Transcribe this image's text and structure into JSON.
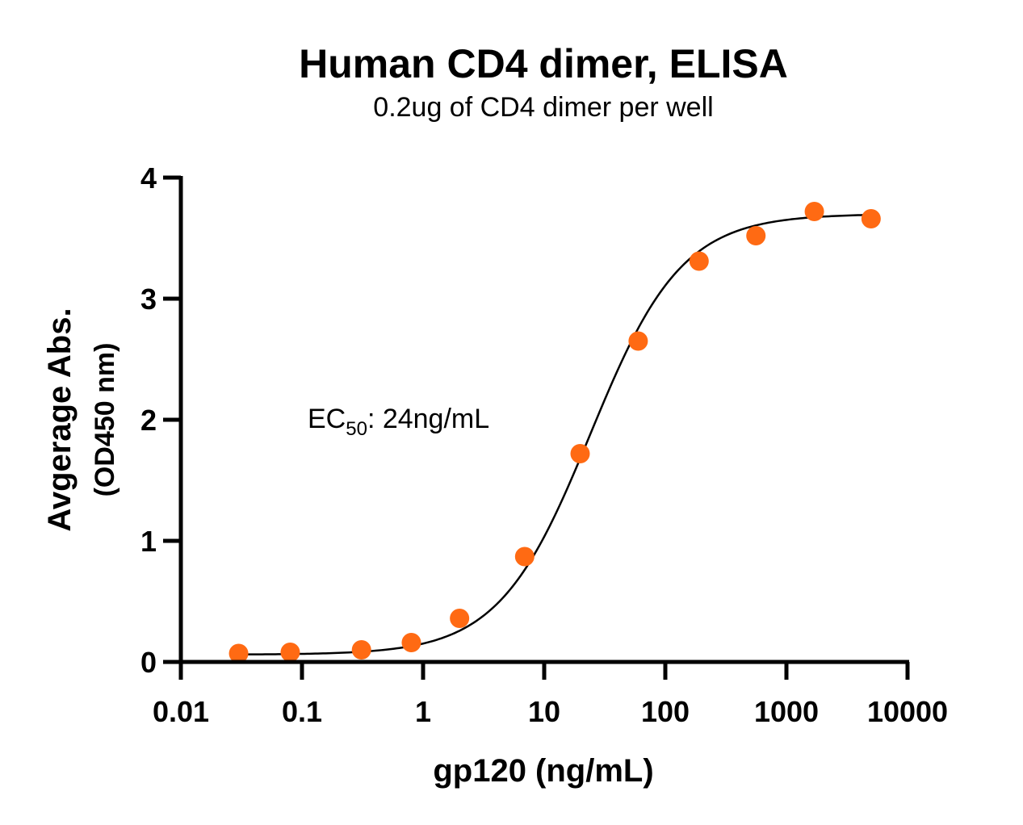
{
  "chart_data": {
    "type": "scatter",
    "title": "Human CD4 dimer, ELISA",
    "subtitle": "0.2ug of CD4 dimer per well",
    "xlabel": "gp120 (ng/mL)",
    "ylabel": "Avgerage Abs.",
    "ylabel_sub": "(OD450 nm)",
    "x_scale": "log",
    "xlim": [
      0.01,
      10000
    ],
    "ylim": [
      0,
      4
    ],
    "x_ticks": [
      {
        "value": 0.01,
        "label": "0.01"
      },
      {
        "value": 0.1,
        "label": "0.1"
      },
      {
        "value": 1,
        "label": "1"
      },
      {
        "value": 10,
        "label": "10"
      },
      {
        "value": 100,
        "label": "100"
      },
      {
        "value": 1000,
        "label": "1000"
      },
      {
        "value": 10000,
        "label": "10000"
      }
    ],
    "y_ticks": [
      {
        "value": 0,
        "label": "0"
      },
      {
        "value": 1,
        "label": "1"
      },
      {
        "value": 2,
        "label": "2"
      },
      {
        "value": 3,
        "label": "3"
      },
      {
        "value": 4,
        "label": "4"
      }
    ],
    "grid": false,
    "series": [
      {
        "color": "#ff6a13",
        "points": [
          {
            "x": 0.03,
            "y": 0.07
          },
          {
            "x": 0.08,
            "y": 0.08
          },
          {
            "x": 0.31,
            "y": 0.1
          },
          {
            "x": 0.8,
            "y": 0.16
          },
          {
            "x": 2.0,
            "y": 0.36
          },
          {
            "x": 6.9,
            "y": 0.87
          },
          {
            "x": 19.8,
            "y": 1.72
          },
          {
            "x": 59.7,
            "y": 2.65
          },
          {
            "x": 190,
            "y": 3.31
          },
          {
            "x": 560,
            "y": 3.52
          },
          {
            "x": 1700,
            "y": 3.72
          },
          {
            "x": 5000,
            "y": 3.66
          }
        ]
      }
    ],
    "fit_curve": {
      "model": "4PL",
      "bottom": 0.06,
      "top": 3.7,
      "ec50": 24,
      "hill": 1.15,
      "color": "#000000"
    },
    "annotation": {
      "prefix": "EC",
      "subscript": "50",
      "suffix": ": 24ng/mL"
    }
  }
}
